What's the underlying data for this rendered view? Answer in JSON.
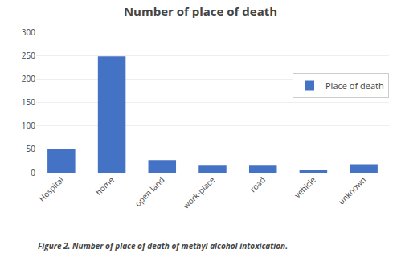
{
  "chart_data": {
    "type": "bar",
    "title": "Number of place of death",
    "categories": [
      "Hospital",
      "home",
      "open land",
      "work-place",
      "road",
      "vehicle",
      "unknown"
    ],
    "series": [
      {
        "name": "Place of death",
        "color": "#4472C4",
        "values": [
          50,
          248,
          27,
          15,
          15,
          5,
          18
        ]
      }
    ],
    "ylim": [
      0,
      300
    ],
    "yticks": [
      0,
      50,
      100,
      150,
      200,
      250,
      300
    ],
    "grid": true,
    "legend": "right",
    "caption": "Figure 2. Number of place of death of methyl alcohol intoxication."
  }
}
